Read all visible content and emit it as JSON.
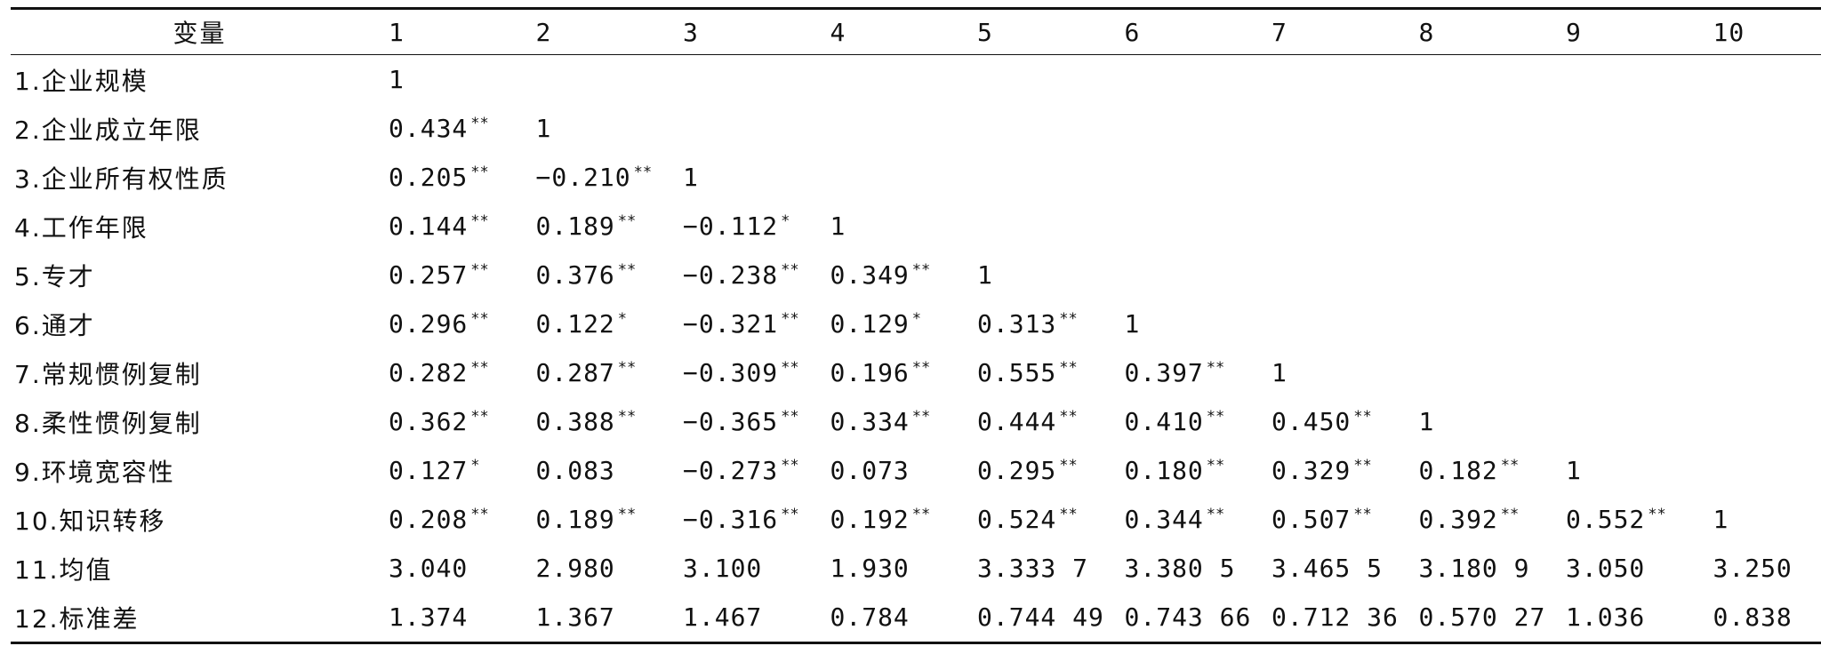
{
  "table": {
    "header_label": "变量",
    "columns": [
      "1",
      "2",
      "3",
      "4",
      "5",
      "6",
      "7",
      "8",
      "9",
      "10"
    ],
    "rows": [
      {
        "label": "1.企业规模",
        "cells": [
          {
            "v": "1",
            "s": ""
          }
        ]
      },
      {
        "label": "2.企业成立年限",
        "cells": [
          {
            "v": "0.434",
            "s": "**"
          },
          {
            "v": "1",
            "s": ""
          }
        ]
      },
      {
        "label": "3.企业所有权性质",
        "cells": [
          {
            "v": "0.205",
            "s": "**"
          },
          {
            "v": "−0.210",
            "s": "**"
          },
          {
            "v": "1",
            "s": ""
          }
        ]
      },
      {
        "label": "4.工作年限",
        "cells": [
          {
            "v": "0.144",
            "s": "**"
          },
          {
            "v": "0.189",
            "s": "**"
          },
          {
            "v": "−0.112",
            "s": "*"
          },
          {
            "v": "1",
            "s": ""
          }
        ]
      },
      {
        "label": "5.专才",
        "cells": [
          {
            "v": "0.257",
            "s": "**"
          },
          {
            "v": "0.376",
            "s": "**"
          },
          {
            "v": "−0.238",
            "s": "**"
          },
          {
            "v": "0.349",
            "s": "**"
          },
          {
            "v": "1",
            "s": ""
          }
        ]
      },
      {
        "label": "6.通才",
        "cells": [
          {
            "v": "0.296",
            "s": "**"
          },
          {
            "v": "0.122",
            "s": "*"
          },
          {
            "v": "−0.321",
            "s": "**"
          },
          {
            "v": "0.129",
            "s": "*"
          },
          {
            "v": "0.313",
            "s": "**"
          },
          {
            "v": "1",
            "s": ""
          }
        ]
      },
      {
        "label": "7.常规惯例复制",
        "cells": [
          {
            "v": "0.282",
            "s": "**"
          },
          {
            "v": "0.287",
            "s": "**"
          },
          {
            "v": "−0.309",
            "s": "**"
          },
          {
            "v": "0.196",
            "s": "**"
          },
          {
            "v": "0.555",
            "s": "**"
          },
          {
            "v": "0.397",
            "s": "**"
          },
          {
            "v": "1",
            "s": ""
          }
        ]
      },
      {
        "label": "8.柔性惯例复制",
        "cells": [
          {
            "v": "0.362",
            "s": "**"
          },
          {
            "v": "0.388",
            "s": "**"
          },
          {
            "v": "−0.365",
            "s": "**"
          },
          {
            "v": "0.334",
            "s": "**"
          },
          {
            "v": "0.444",
            "s": "**"
          },
          {
            "v": "0.410",
            "s": "**"
          },
          {
            "v": "0.450",
            "s": "**"
          },
          {
            "v": "1",
            "s": ""
          }
        ]
      },
      {
        "label": "9.环境宽容性",
        "cells": [
          {
            "v": "0.127",
            "s": "*"
          },
          {
            "v": "0.083",
            "s": ""
          },
          {
            "v": "−0.273",
            "s": "**"
          },
          {
            "v": "0.073",
            "s": ""
          },
          {
            "v": "0.295",
            "s": "**"
          },
          {
            "v": "0.180",
            "s": "**"
          },
          {
            "v": "0.329",
            "s": "**"
          },
          {
            "v": "0.182",
            "s": "**"
          },
          {
            "v": "1",
            "s": ""
          }
        ]
      },
      {
        "label": "10.知识转移",
        "cells": [
          {
            "v": "0.208",
            "s": "**"
          },
          {
            "v": "0.189",
            "s": "**"
          },
          {
            "v": "−0.316",
            "s": "**"
          },
          {
            "v": "0.192",
            "s": "**"
          },
          {
            "v": "0.524",
            "s": "**"
          },
          {
            "v": "0.344",
            "s": "**"
          },
          {
            "v": "0.507",
            "s": "**"
          },
          {
            "v": "0.392",
            "s": "**"
          },
          {
            "v": "0.552",
            "s": "**"
          },
          {
            "v": "1",
            "s": ""
          }
        ]
      },
      {
        "label": "11.均值",
        "cells": [
          {
            "v": "3.040",
            "s": ""
          },
          {
            "v": "2.980",
            "s": ""
          },
          {
            "v": "3.100",
            "s": ""
          },
          {
            "v": "1.930",
            "s": ""
          },
          {
            "v": "3.333 7",
            "s": ""
          },
          {
            "v": "3.380 5",
            "s": ""
          },
          {
            "v": "3.465 5",
            "s": ""
          },
          {
            "v": "3.180 9",
            "s": ""
          },
          {
            "v": "3.050",
            "s": ""
          },
          {
            "v": "3.250",
            "s": ""
          }
        ]
      },
      {
        "label": "12.标准差",
        "cells": [
          {
            "v": "1.374",
            "s": ""
          },
          {
            "v": "1.367",
            "s": ""
          },
          {
            "v": "1.467",
            "s": ""
          },
          {
            "v": "0.784",
            "s": ""
          },
          {
            "v": "0.744 49",
            "s": ""
          },
          {
            "v": "0.743 66",
            "s": ""
          },
          {
            "v": "0.712 36",
            "s": ""
          },
          {
            "v": "0.570 27",
            "s": ""
          },
          {
            "v": "1.036",
            "s": ""
          },
          {
            "v": "0.838",
            "s": ""
          }
        ]
      }
    ]
  }
}
